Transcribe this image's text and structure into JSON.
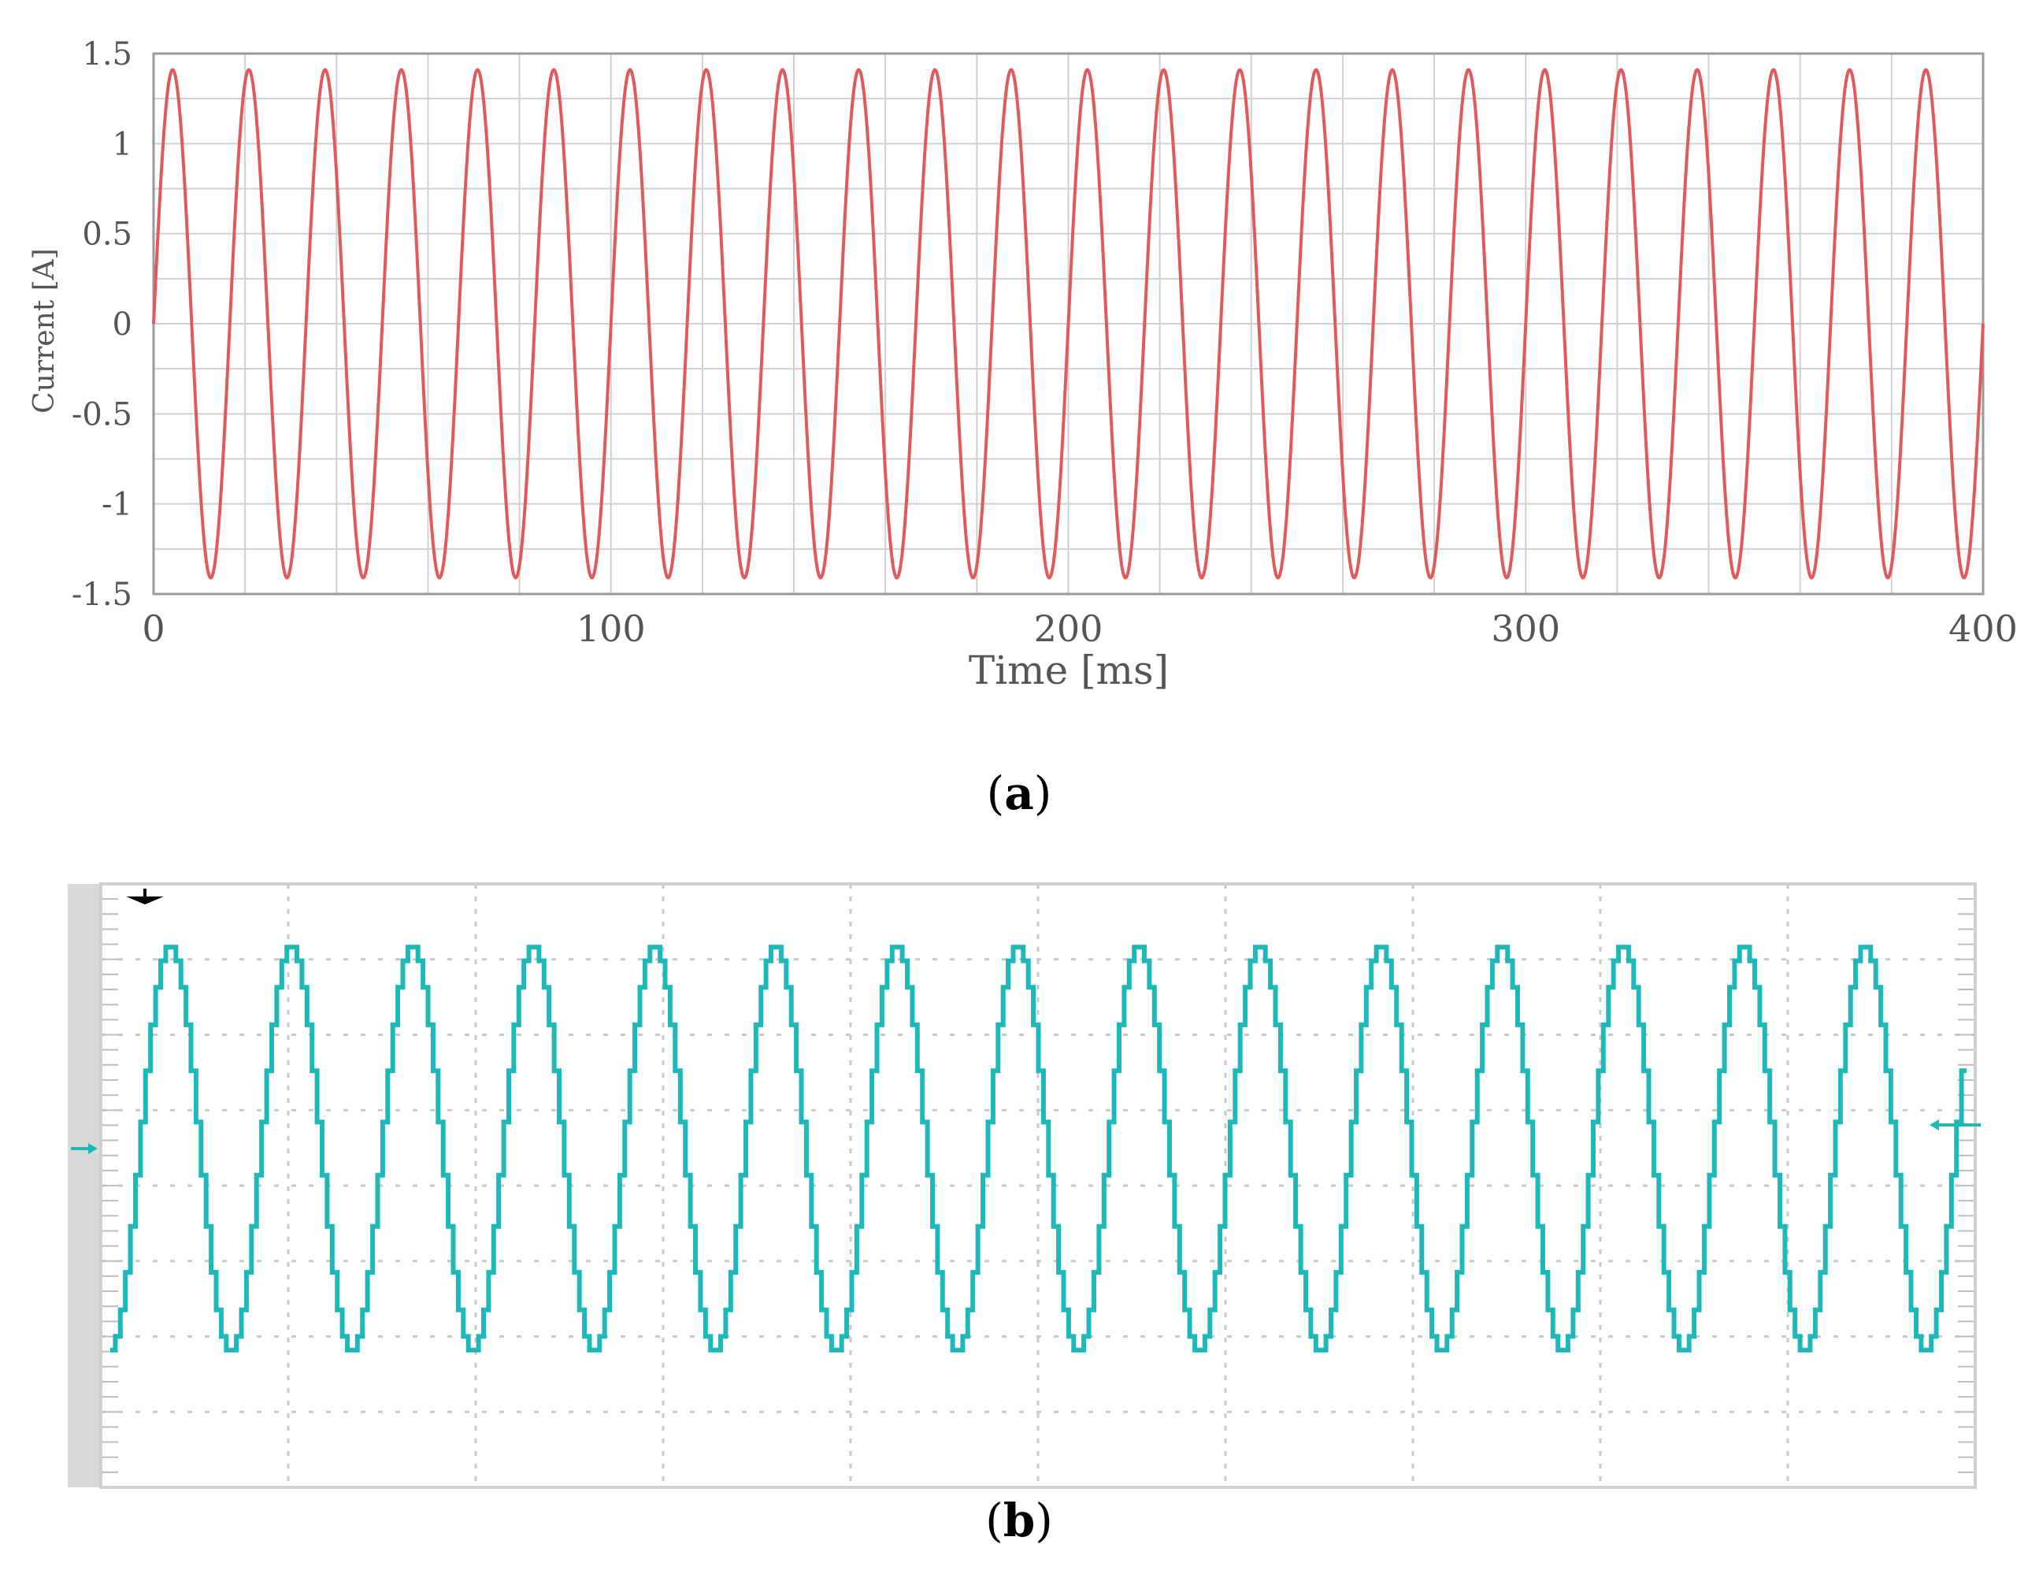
{
  "chart_data": [
    {
      "type": "line",
      "panel_label": "a",
      "xlabel": "Time [ms]",
      "ylabel": "Current [A]",
      "xlim": [
        0,
        400
      ],
      "ylim": [
        -1.5,
        1.5
      ],
      "x_ticks": [
        "0",
        "100",
        "200",
        "300",
        "400"
      ],
      "y_ticks": [
        "1.5",
        "1",
        "0.5",
        "0",
        "-0.5",
        "-1",
        "-1.5"
      ],
      "grid": true,
      "color": "#e05a5a",
      "series": [
        {
          "amplitude": 1.41,
          "frequency_hz": 60,
          "phase_deg": 0,
          "t_start_ms": 0,
          "t_end_ms": 400
        }
      ]
    },
    {
      "type": "line",
      "panel_label": "b",
      "grid": true,
      "color": "#1fb8b8",
      "style": "stepped",
      "ylim": [
        -1.5,
        1.5
      ],
      "series": [
        {
          "amplitude": 1.0,
          "cycles": 15,
          "phase_deg": -90,
          "steps_per_half_cycle": 12
        }
      ]
    }
  ],
  "captions": {
    "a": "a",
    "b": "b"
  }
}
